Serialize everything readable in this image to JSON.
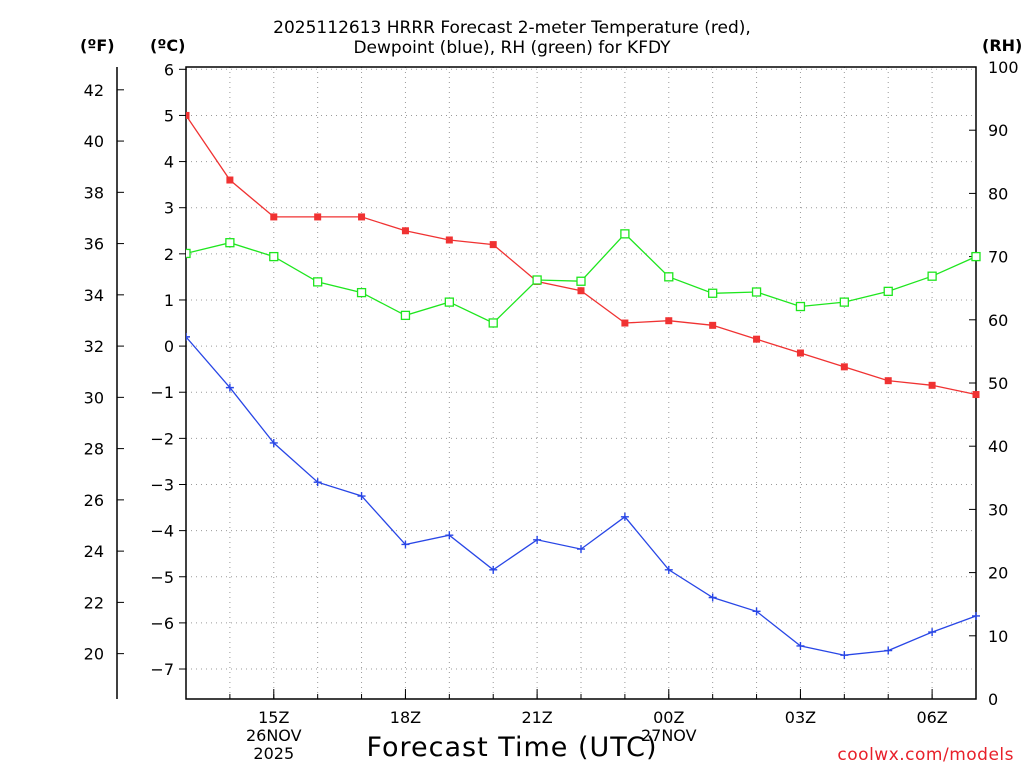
{
  "title_line1": "2025112613 HRRR Forecast 2-meter Temperature (red),",
  "title_line2": "Dewpoint (blue), RH (green) for KFDY",
  "unit_f": "(ºF)",
  "unit_c": "(ºC)",
  "unit_rh": "(RH)",
  "xlabel": "Forecast Time (UTC)",
  "credit": "coolwx.com/models",
  "colors": {
    "temperature": "#f03232",
    "dewpoint": "#2846e6",
    "rh": "#1ee61e",
    "grid": "#9a9a9a"
  },
  "chart_data": {
    "type": "line",
    "title": "2025112613 HRRR Forecast 2-meter Temperature (red), Dewpoint (blue), RH (green) for KFDY",
    "xlabel": "Forecast Time (UTC)",
    "hours": [
      13,
      14,
      15,
      16,
      17,
      18,
      19,
      20,
      21,
      22,
      23,
      24,
      25,
      26,
      27,
      28,
      29,
      30,
      31
    ],
    "xlim": [
      13,
      31
    ],
    "x_ticks": [
      {
        "hour": 15,
        "label": "15Z",
        "date": "26NOV",
        "year": "2025"
      },
      {
        "hour": 18,
        "label": "18Z"
      },
      {
        "hour": 21,
        "label": "21Z"
      },
      {
        "hour": 24,
        "label": "00Z",
        "date": "27NOV"
      },
      {
        "hour": 27,
        "label": "03Z"
      },
      {
        "hour": 30,
        "label": "06Z"
      }
    ],
    "ylim_c": [
      -7.65,
      6.05
    ],
    "yticks_c": [
      6,
      5,
      4,
      3,
      2,
      1,
      0,
      -1,
      -2,
      -3,
      -4,
      -5,
      -6,
      -7
    ],
    "yticks_f": [
      42,
      40,
      38,
      36,
      34,
      32,
      30,
      28,
      26,
      24,
      22,
      20
    ],
    "ylim_rh": [
      0,
      100
    ],
    "yticks_rh": [
      100,
      90,
      80,
      70,
      60,
      50,
      40,
      30,
      20,
      10,
      0
    ],
    "series": [
      {
        "name": "Temperature",
        "axis": "celsius",
        "marker": "filled-square",
        "values": [
          5.0,
          3.6,
          2.8,
          2.8,
          2.8,
          2.5,
          2.3,
          2.2,
          1.4,
          1.2,
          0.5,
          0.55,
          0.45,
          0.15,
          -0.15,
          -0.45,
          -0.75,
          -0.85,
          -1.05
        ]
      },
      {
        "name": "Dewpoint",
        "axis": "celsius",
        "marker": "plus",
        "values": [
          0.2,
          -0.9,
          -2.1,
          -2.95,
          -3.25,
          -4.3,
          -4.1,
          -4.85,
          -4.2,
          -4.4,
          -3.7,
          -4.85,
          -5.45,
          -5.75,
          -6.5,
          -6.7,
          -6.6,
          -6.2,
          -5.85
        ]
      },
      {
        "name": "RH",
        "axis": "rh",
        "marker": "open-square",
        "values": [
          70.5,
          72.2,
          70.0,
          66.0,
          64.3,
          60.7,
          62.8,
          59.5,
          66.3,
          66.1,
          73.6,
          66.8,
          64.2,
          64.4,
          62.1,
          62.8,
          64.5,
          66.9,
          70.0
        ]
      }
    ],
    "grid": true
  }
}
